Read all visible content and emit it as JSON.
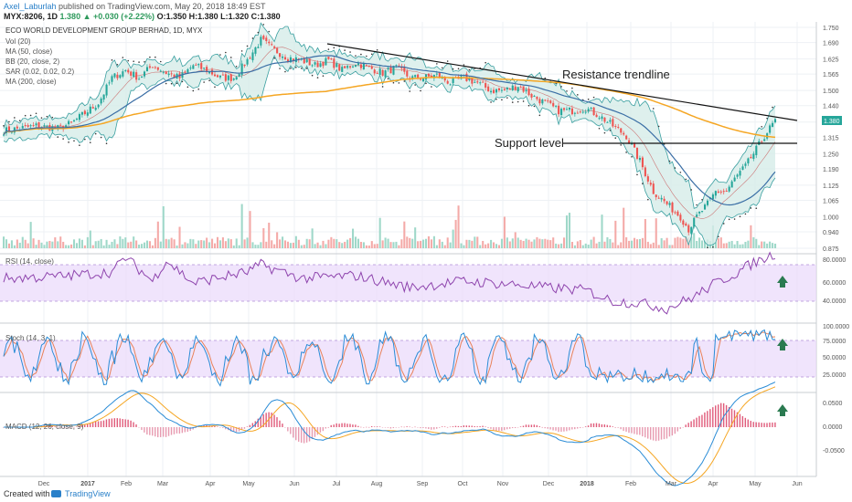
{
  "header": {
    "author": "Axel_Laburlah",
    "published_text": " published on TradingView.com, May 20, 2018 18:49 EST",
    "ticker": "MYX:8206, 1D",
    "last": "1.380",
    "change": "▲ +0.030 (+2.22%)",
    "ohlc": " O:1.350 H:1.380 L:1.320 C:1.380"
  },
  "footer": {
    "created_with": "Created with",
    "brand": "TradingView"
  },
  "chart_data": {
    "type": "candlestick",
    "title": "ECO WORLD DEVELOPMENT GROUP BERHAD, 1D, MYX",
    "indicators": [
      "Vol (20)",
      "MA (50, close)",
      "BB (20, close, 2)",
      "SAR (0.02, 0.02, 0.2)",
      "MA (200, close)"
    ],
    "x_ticks": [
      "Dec",
      "2017",
      "Feb",
      "Mar",
      "Apr",
      "May",
      "Jun",
      "Jul",
      "Aug",
      "Sep",
      "Oct",
      "Nov",
      "Dec",
      "2018",
      "Feb",
      "Mar",
      "Apr",
      "May",
      "Jun"
    ],
    "price_ticks": [
      "1.750",
      "1.690",
      "1.625",
      "1.565",
      "1.500",
      "1.440",
      "1.375",
      "1.315",
      "1.250",
      "1.190",
      "1.125",
      "1.065",
      "1.000",
      "0.940",
      "0.875"
    ],
    "ylim": [
      0.875,
      1.75
    ],
    "last_price_label": "1.380",
    "colors": {
      "up": "#26a69a",
      "down": "#ef5350",
      "ma50": "#3a6ea5",
      "ma200": "#f5a623",
      "bb": "#3a9fa0",
      "rsi": "#8e44ad",
      "stoch_k": "#2a8cd6",
      "stoch_d": "#e8825a",
      "macd": "#2a8cd6",
      "signal": "#f5a623"
    },
    "price_anchors": [
      [
        0,
        1.34
      ],
      [
        12,
        1.36
      ],
      [
        20,
        1.35
      ],
      [
        25,
        1.37
      ],
      [
        30,
        1.41
      ],
      [
        35,
        1.45
      ],
      [
        40,
        1.55
      ],
      [
        45,
        1.58
      ],
      [
        50,
        1.55
      ],
      [
        55,
        1.6
      ],
      [
        60,
        1.57
      ],
      [
        65,
        1.55
      ],
      [
        70,
        1.6
      ],
      [
        75,
        1.58
      ],
      [
        80,
        1.55
      ],
      [
        85,
        1.55
      ],
      [
        90,
        1.62
      ],
      [
        95,
        1.7
      ],
      [
        100,
        1.66
      ],
      [
        105,
        1.63
      ],
      [
        110,
        1.62
      ],
      [
        115,
        1.6
      ],
      [
        120,
        1.62
      ],
      [
        125,
        1.58
      ],
      [
        130,
        1.61
      ],
      [
        135,
        1.59
      ],
      [
        140,
        1.57
      ],
      [
        145,
        1.59
      ],
      [
        150,
        1.55
      ],
      [
        155,
        1.55
      ],
      [
        160,
        1.56
      ],
      [
        165,
        1.53
      ],
      [
        170,
        1.55
      ],
      [
        175,
        1.53
      ],
      [
        180,
        1.5
      ],
      [
        185,
        1.5
      ],
      [
        190,
        1.52
      ],
      [
        195,
        1.48
      ],
      [
        200,
        1.45
      ],
      [
        205,
        1.42
      ],
      [
        210,
        1.42
      ],
      [
        215,
        1.43
      ],
      [
        220,
        1.4
      ],
      [
        225,
        1.36
      ],
      [
        230,
        1.32
      ],
      [
        235,
        1.22
      ],
      [
        240,
        1.1
      ],
      [
        245,
        1.05
      ],
      [
        250,
        1.0
      ],
      [
        253,
        0.95
      ],
      [
        256,
        1.0
      ],
      [
        260,
        1.05
      ],
      [
        263,
        1.1
      ],
      [
        267,
        1.1
      ],
      [
        270,
        1.15
      ],
      [
        274,
        1.2
      ],
      [
        277,
        1.25
      ],
      [
        281,
        1.32
      ],
      [
        285,
        1.38
      ]
    ],
    "rsi": {
      "label": "RSI (14, close)",
      "ticks": [
        "80.0000",
        "60.0000",
        "40.0000"
      ],
      "band": [
        30,
        70
      ],
      "anchors": [
        [
          0,
          55
        ],
        [
          20,
          57
        ],
        [
          40,
          62
        ],
        [
          45,
          78
        ],
        [
          55,
          52
        ],
        [
          60,
          75
        ],
        [
          70,
          50
        ],
        [
          90,
          62
        ],
        [
          95,
          70
        ],
        [
          110,
          55
        ],
        [
          130,
          58
        ],
        [
          150,
          45
        ],
        [
          170,
          52
        ],
        [
          190,
          48
        ],
        [
          200,
          45
        ],
        [
          215,
          42
        ],
        [
          225,
          30
        ],
        [
          235,
          28
        ],
        [
          245,
          22
        ],
        [
          255,
          35
        ],
        [
          262,
          48
        ],
        [
          270,
          60
        ],
        [
          277,
          72
        ],
        [
          285,
          82
        ]
      ]
    },
    "stoch": {
      "label": "Stoch (14, 3, 1)",
      "ticks": [
        "100.0000",
        "75.0000",
        "50.0000",
        "25.0000"
      ],
      "band": [
        20,
        80
      ]
    },
    "macd": {
      "label": "MACD (12, 26, close, 9)",
      "ticks": [
        "0.0500",
        "0.0000",
        "-0.0500"
      ]
    },
    "annotations": [
      "Resistance trendline",
      "Support level"
    ]
  }
}
